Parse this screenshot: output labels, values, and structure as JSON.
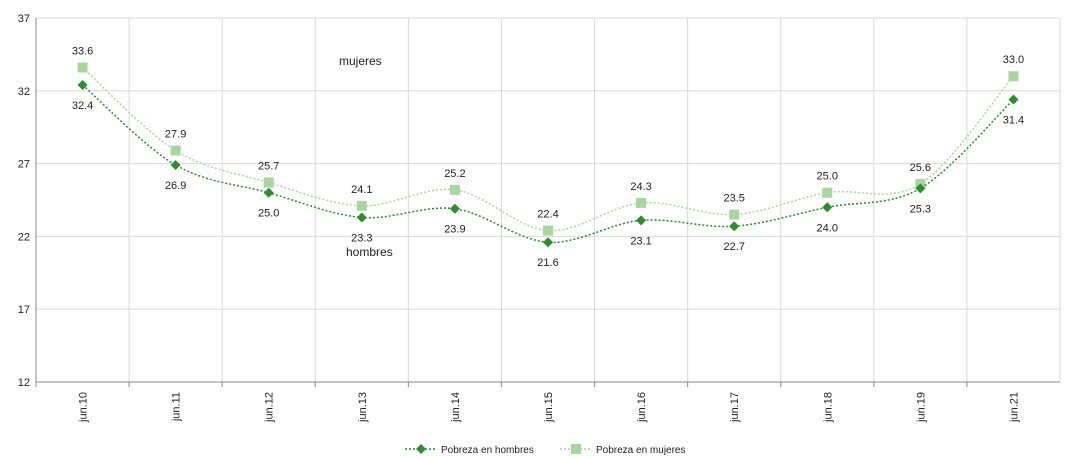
{
  "chart_data": {
    "type": "line",
    "categories": [
      "jun.10",
      "jun.11",
      "jun.12",
      "jun.13",
      "jun.14",
      "jun.15",
      "jun.16",
      "jun.17",
      "jun.18",
      "jun.19",
      "jun.21"
    ],
    "ylim": [
      12,
      37
    ],
    "yticks": [
      "12",
      "17",
      "22",
      "27",
      "32",
      "37"
    ],
    "grid": true,
    "legend_position": "bottom-center",
    "series": [
      {
        "name": "Pobreza en hombres",
        "color": "#2e8b2e",
        "marker": "diamond",
        "values": [
          32.4,
          26.9,
          25.0,
          23.3,
          23.9,
          21.6,
          23.1,
          22.7,
          24.0,
          25.3,
          31.4
        ],
        "labels": [
          "32.4",
          "26.9",
          "25.0",
          "23.3",
          "23.9",
          "21.6",
          "23.1",
          "22.7",
          "24.0",
          "25.3",
          "31.4"
        ]
      },
      {
        "name": "Pobreza en mujeres",
        "color": "#a8d5a0",
        "marker": "square",
        "values": [
          33.6,
          27.9,
          25.7,
          24.1,
          25.2,
          22.4,
          24.3,
          23.5,
          25.0,
          25.6,
          33.0
        ],
        "labels": [
          "33.6",
          "27.9",
          "25.7",
          "24.1",
          "25.2",
          "22.4",
          "24.3",
          "23.5",
          "25.0",
          "25.6",
          "33.0"
        ]
      }
    ],
    "annotations": {
      "mujeres": "mujeres",
      "hombres": "hombres"
    }
  }
}
